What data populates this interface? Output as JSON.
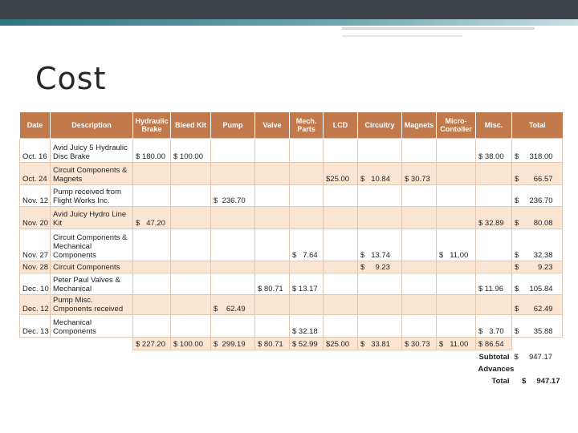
{
  "header": {
    "title": "Cost"
  },
  "table": {
    "columns": [
      "Date",
      "Description",
      "Hydraulic Brake",
      "Bleed Kit",
      "Pump",
      "Valve",
      "Mech. Parts",
      "LCD",
      "Circuitry",
      "Magnets",
      "Micro-Contoller",
      "Misc.",
      "Total"
    ],
    "rows": [
      [
        "Oct. 16",
        "Avid Juicy 5 Hydraulic Disc Brake",
        "$ 180.00",
        "$ 100.00",
        null,
        null,
        null,
        null,
        null,
        null,
        null,
        "$ 38.00",
        "$     318.00"
      ],
      [
        "Oct. 24",
        "Circuit Components & Magnets",
        null,
        null,
        null,
        null,
        null,
        "$25.00",
        "$   10.84",
        "$ 30.73",
        null,
        null,
        "$       66.57"
      ],
      [
        "Nov. 12",
        "Pump received from Flight Works Inc.",
        null,
        null,
        "$  236.70",
        null,
        null,
        null,
        null,
        null,
        null,
        null,
        "$     236.70"
      ],
      [
        "Nov. 20",
        "Avid Juicy Hydro Line Kit",
        "$   47.20",
        null,
        null,
        null,
        null,
        null,
        null,
        null,
        null,
        "$ 32.89",
        "$       80.08"
      ],
      [
        "Nov. 27",
        "Circuit Components & Mechanical Components",
        null,
        null,
        null,
        null,
        "$   7.64",
        null,
        "$   13.74",
        null,
        "$   11.00",
        null,
        "$       32.38"
      ],
      [
        "Nov. 28",
        "Circuit Components",
        null,
        null,
        null,
        null,
        null,
        null,
        "$     9.23",
        null,
        null,
        null,
        "$         9.23"
      ],
      [
        "Dec. 10",
        "Peter Paul Valves & Mechanical",
        null,
        null,
        null,
        "$ 80.71",
        "$ 13.17",
        null,
        null,
        null,
        null,
        "$ 11.96",
        "$     105.84"
      ],
      [
        "Dec. 12",
        "Pump Misc. Cmponents received",
        null,
        null,
        "$    62.49",
        null,
        null,
        null,
        null,
        null,
        null,
        null,
        "$       62.49"
      ],
      [
        "Dec. 13",
        "Mechanical Components",
        null,
        null,
        null,
        null,
        "$ 32.18",
        null,
        null,
        null,
        null,
        "$   3.70",
        "$       35.88"
      ]
    ],
    "totals": [
      null,
      null,
      "$ 227.20",
      "$ 100.00",
      "$  299.19",
      "$ 80.71",
      "$ 52.99",
      "$25.00",
      "$   33.81",
      "$ 30.73",
      "$   11.00",
      "$ 86.54",
      null
    ],
    "summary": [
      {
        "label": "Subtotal",
        "value": "$     947.17"
      },
      {
        "label": "Advances",
        "value": null
      },
      {
        "label": "Total",
        "value": "$     947.17"
      }
    ]
  }
}
